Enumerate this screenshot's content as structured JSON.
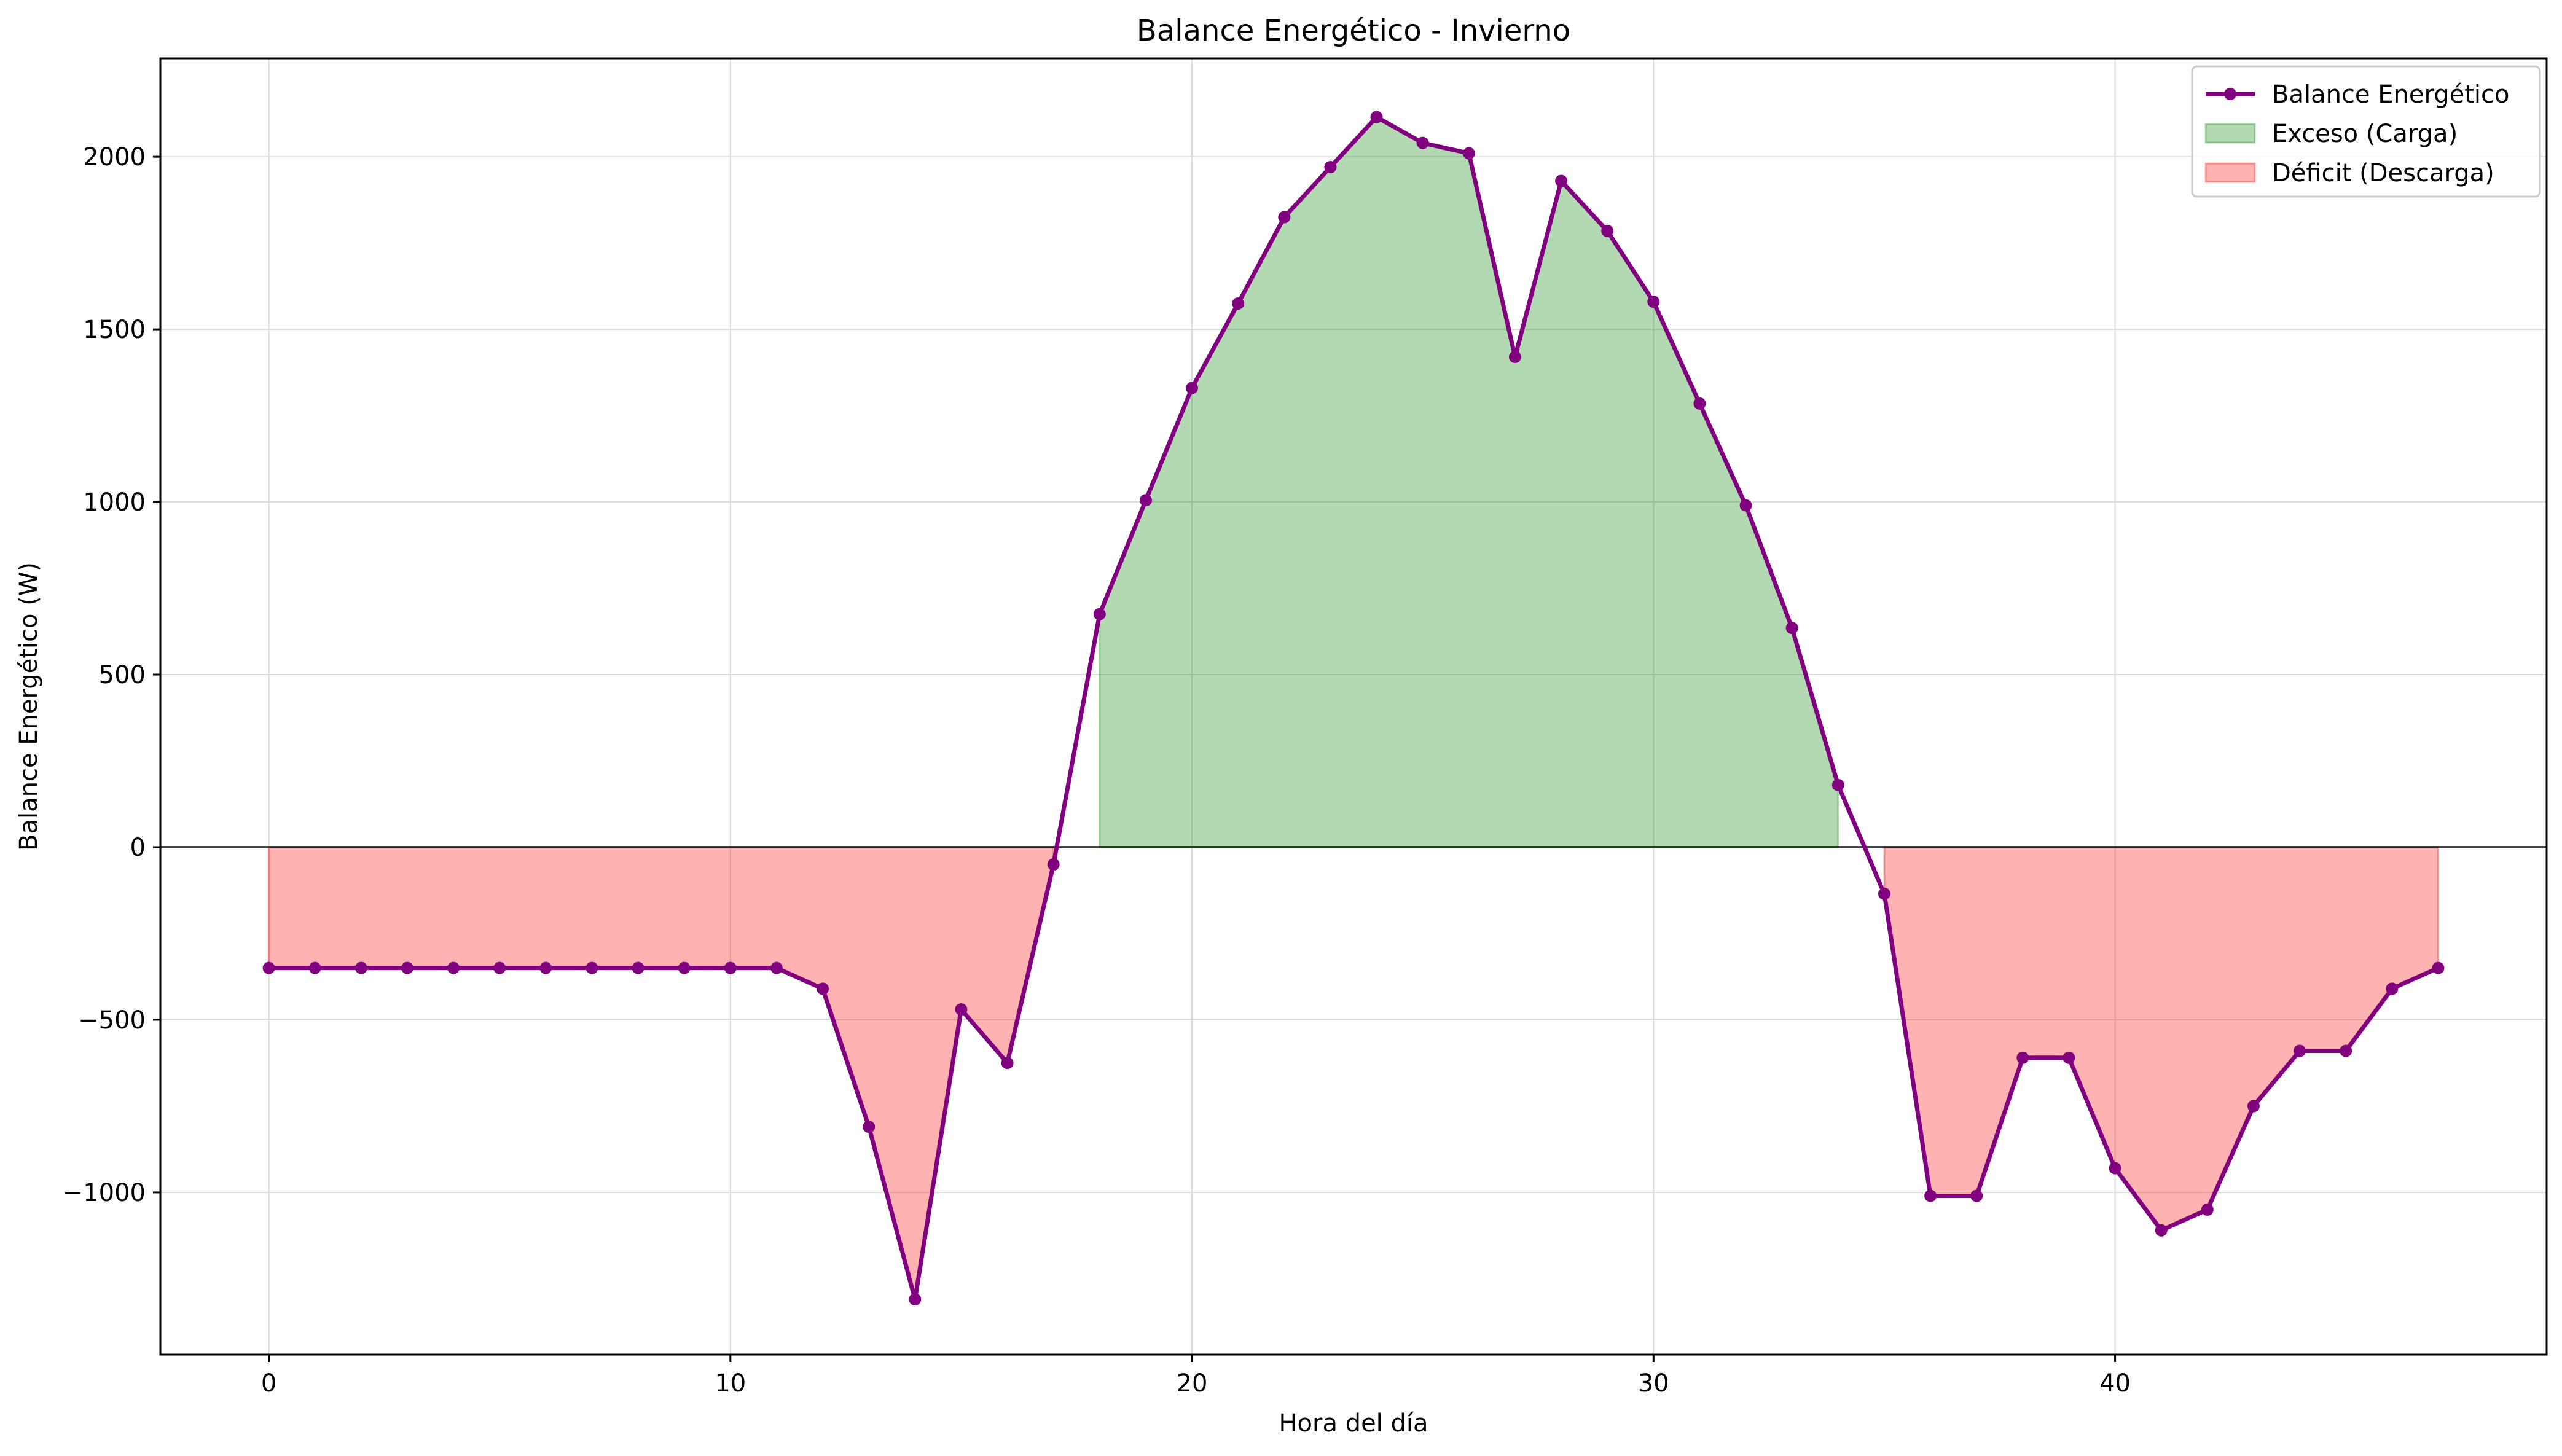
{
  "chart_data": {
    "type": "line",
    "title": "Balance Energético - Invierno",
    "xlabel": "Hora del día",
    "ylabel": "Balance Energético (W)",
    "xlim": [
      -2.35,
      49.35
    ],
    "ylim": [
      -1470,
      2285
    ],
    "x_ticks": [
      0,
      10,
      20,
      30,
      40
    ],
    "y_ticks": [
      -1000,
      -500,
      0,
      500,
      1000,
      1500,
      2000
    ],
    "grid": true,
    "legend_position": "top-right",
    "x": [
      0,
      1,
      2,
      3,
      4,
      5,
      6,
      7,
      8,
      9,
      10,
      11,
      12,
      13,
      14,
      15,
      16,
      17,
      18,
      19,
      20,
      21,
      22,
      23,
      24,
      25,
      26,
      27,
      28,
      29,
      30,
      31,
      32,
      33,
      34,
      35,
      36,
      37,
      38,
      39,
      40,
      41,
      42,
      43,
      44,
      45,
      46,
      47
    ],
    "series": [
      {
        "name": "Balance Energético",
        "color": "#800080",
        "values": [
          -350,
          -350,
          -350,
          -350,
          -350,
          -350,
          -350,
          -350,
          -350,
          -350,
          -350,
          -350,
          -410,
          -810,
          -1310,
          -470,
          -625,
          -50,
          675,
          1005,
          1330,
          1575,
          1825,
          1970,
          2115,
          2040,
          2010,
          1420,
          1930,
          1785,
          1580,
          1285,
          990,
          635,
          180,
          -135,
          -1010,
          -1010,
          -610,
          -610,
          -930,
          -1110,
          -1050,
          -750,
          -590,
          -590,
          -410,
          -350
        ]
      }
    ],
    "fills": [
      {
        "name": "Exceso (Carga)",
        "color": "#008000",
        "opacity": 0.3
      },
      {
        "name": "Déficit (Descarga)",
        "color": "#ff0000",
        "opacity": 0.3
      }
    ],
    "zero_line": true
  }
}
